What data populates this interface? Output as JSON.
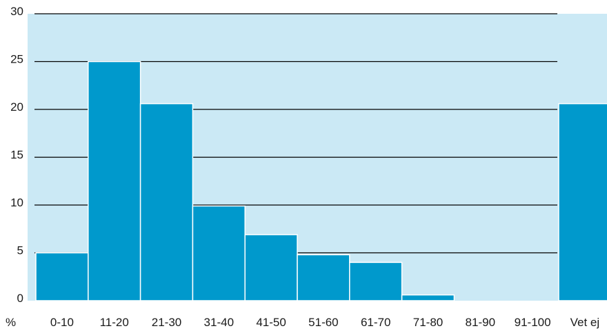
{
  "chart_data": {
    "type": "bar",
    "title": "",
    "xlabel": "",
    "ylabel": "%",
    "categories": [
      "0-10",
      "11-20",
      "21-30",
      "31-40",
      "41-50",
      "51-60",
      "61-70",
      "71-80",
      "81-90",
      "91-100",
      "Vet ej"
    ],
    "values": [
      5,
      25,
      20.6,
      9.9,
      6.9,
      4.8,
      4,
      0.6,
      0,
      0,
      20.6
    ],
    "ylim": [
      0,
      30
    ],
    "yticks": [
      "0",
      "5",
      "10",
      "15",
      "20",
      "25",
      "30"
    ],
    "grid": true,
    "legend": "none",
    "colors": {
      "bar": "#0099cc",
      "plot_background": "#cbe9f5",
      "gridline": "#000000",
      "bar_edge": "#ffffff"
    }
  }
}
